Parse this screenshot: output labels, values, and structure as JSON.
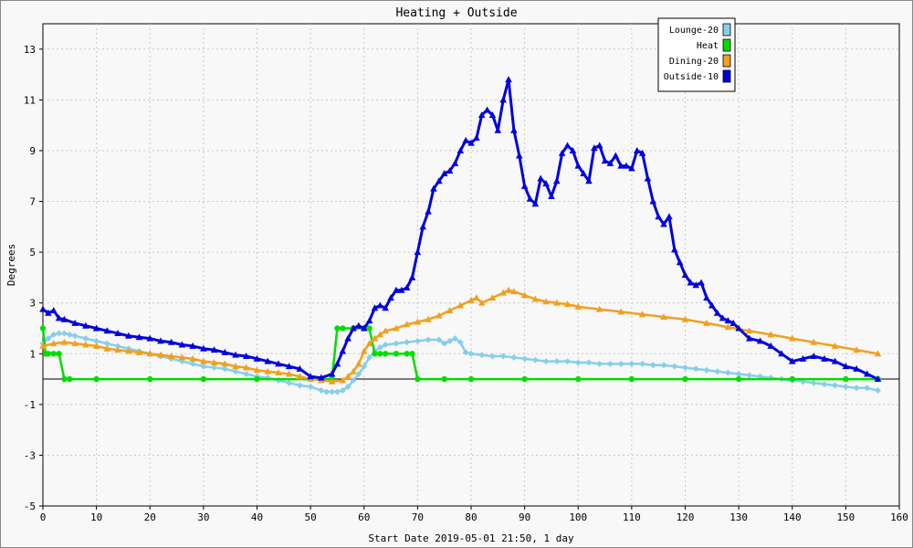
{
  "chart_data": {
    "type": "line",
    "title": "Heating + Outside",
    "xlabel": "Start Date 2019-05-01 21:50, 1 day",
    "ylabel": "Degrees",
    "xlim": [
      0,
      160
    ],
    "ylim": [
      -5,
      14
    ],
    "xticks": [
      0,
      10,
      20,
      30,
      40,
      50,
      60,
      70,
      80,
      90,
      100,
      110,
      120,
      130,
      140,
      150,
      160
    ],
    "yticks": [
      -5,
      -3,
      -1,
      1,
      3,
      5,
      7,
      9,
      11,
      13
    ],
    "grid": true,
    "legend_position": "top-right",
    "series": [
      {
        "name": "Lounge-20",
        "color": "#87ceeb",
        "marker": "diamond",
        "x": [
          0,
          1,
          2,
          3,
          4,
          5,
          6,
          8,
          10,
          12,
          14,
          16,
          18,
          20,
          22,
          24,
          26,
          28,
          30,
          32,
          34,
          36,
          38,
          40,
          42,
          44,
          46,
          48,
          50,
          52,
          53,
          54,
          55,
          56,
          57,
          58,
          59,
          60,
          61,
          62,
          63,
          64,
          66,
          68,
          70,
          72,
          74,
          75,
          76,
          77,
          78,
          79,
          80,
          82,
          84,
          86,
          88,
          90,
          92,
          94,
          96,
          98,
          100,
          102,
          104,
          106,
          108,
          110,
          112,
          114,
          116,
          118,
          120,
          122,
          124,
          126,
          128,
          130,
          132,
          134,
          136,
          138,
          140,
          142,
          144,
          146,
          148,
          150,
          152,
          154,
          156
        ],
        "values": [
          1.4,
          1.6,
          1.75,
          1.8,
          1.8,
          1.75,
          1.7,
          1.6,
          1.5,
          1.4,
          1.3,
          1.2,
          1.1,
          1.0,
          0.9,
          0.8,
          0.7,
          0.6,
          0.5,
          0.45,
          0.4,
          0.3,
          0.2,
          0.1,
          0.05,
          -0.05,
          -0.15,
          -0.25,
          -0.3,
          -0.45,
          -0.5,
          -0.5,
          -0.5,
          -0.45,
          -0.3,
          -0.05,
          0.2,
          0.5,
          0.85,
          1.1,
          1.25,
          1.35,
          1.4,
          1.45,
          1.5,
          1.55,
          1.55,
          1.4,
          1.5,
          1.6,
          1.45,
          1.05,
          1.0,
          0.95,
          0.9,
          0.9,
          0.85,
          0.8,
          0.75,
          0.7,
          0.7,
          0.7,
          0.65,
          0.65,
          0.6,
          0.6,
          0.6,
          0.6,
          0.6,
          0.55,
          0.55,
          0.5,
          0.45,
          0.4,
          0.35,
          0.3,
          0.25,
          0.2,
          0.15,
          0.1,
          0.05,
          0.0,
          -0.05,
          -0.1,
          -0.15,
          -0.2,
          -0.25,
          -0.3,
          -0.35,
          -0.35,
          -0.45
        ]
      },
      {
        "name": "Heat",
        "color": "#00dd00",
        "marker": "circle",
        "x": [
          0,
          0.5,
          1,
          2,
          3,
          4,
          5,
          10,
          20,
          30,
          40,
          50,
          54,
          55,
          56,
          58,
          60,
          61,
          62,
          63,
          64,
          66,
          68,
          69,
          70,
          75,
          80,
          90,
          100,
          110,
          120,
          130,
          140,
          150,
          156
        ],
        "values": [
          2.0,
          1.0,
          1.0,
          1.0,
          1.0,
          0.0,
          0.0,
          0.0,
          0.0,
          0.0,
          0.0,
          0.0,
          0.0,
          2.0,
          2.0,
          2.0,
          2.0,
          2.0,
          1.0,
          1.0,
          1.0,
          1.0,
          1.0,
          1.0,
          0.0,
          0.0,
          0.0,
          0.0,
          0.0,
          0.0,
          0.0,
          0.0,
          0.0,
          0.0,
          0.0
        ]
      },
      {
        "name": "Dining-20",
        "color": "#f0a020",
        "marker": "triangle",
        "x": [
          0,
          2,
          4,
          6,
          8,
          10,
          12,
          14,
          16,
          18,
          20,
          22,
          24,
          26,
          28,
          30,
          32,
          34,
          36,
          38,
          40,
          42,
          44,
          46,
          48,
          50,
          52,
          54,
          56,
          57,
          58,
          59,
          60,
          61,
          62,
          63,
          64,
          66,
          68,
          70,
          72,
          74,
          76,
          78,
          80,
          81,
          82,
          84,
          86,
          87,
          88,
          90,
          92,
          94,
          96,
          98,
          100,
          104,
          108,
          112,
          116,
          120,
          124,
          128,
          132,
          136,
          140,
          144,
          148,
          152,
          156
        ],
        "values": [
          1.3,
          1.4,
          1.45,
          1.4,
          1.35,
          1.3,
          1.2,
          1.15,
          1.1,
          1.05,
          1.0,
          0.95,
          0.9,
          0.85,
          0.8,
          0.7,
          0.65,
          0.6,
          0.5,
          0.45,
          0.35,
          0.3,
          0.25,
          0.2,
          0.1,
          0.0,
          -0.05,
          -0.1,
          -0.05,
          0.1,
          0.3,
          0.6,
          1.1,
          1.4,
          1.6,
          1.75,
          1.9,
          2.0,
          2.15,
          2.25,
          2.35,
          2.5,
          2.7,
          2.9,
          3.1,
          3.2,
          3.0,
          3.2,
          3.4,
          3.5,
          3.45,
          3.3,
          3.15,
          3.05,
          3.0,
          2.95,
          2.85,
          2.75,
          2.65,
          2.55,
          2.45,
          2.35,
          2.2,
          2.05,
          1.9,
          1.75,
          1.6,
          1.45,
          1.3,
          1.15,
          1.0
        ]
      },
      {
        "name": "Outside-10",
        "color": "#0000dd",
        "marker": "triangle",
        "x": [
          0,
          1,
          2,
          3,
          4,
          6,
          8,
          10,
          12,
          14,
          16,
          18,
          20,
          22,
          24,
          26,
          28,
          30,
          32,
          34,
          36,
          38,
          40,
          42,
          44,
          46,
          48,
          50,
          52,
          54,
          55,
          56,
          57,
          58,
          59,
          60,
          61,
          62,
          63,
          64,
          65,
          66,
          67,
          68,
          69,
          70,
          71,
          72,
          73,
          74,
          75,
          76,
          77,
          78,
          79,
          80,
          81,
          82,
          83,
          84,
          85,
          86,
          87,
          88,
          89,
          90,
          91,
          92,
          93,
          94,
          95,
          96,
          97,
          98,
          99,
          100,
          101,
          102,
          103,
          104,
          105,
          106,
          107,
          108,
          109,
          110,
          111,
          112,
          113,
          114,
          115,
          116,
          117,
          118,
          119,
          120,
          121,
          122,
          123,
          124,
          125,
          126,
          127,
          128,
          129,
          130,
          132,
          134,
          136,
          138,
          140,
          142,
          144,
          146,
          148,
          150,
          152,
          154,
          156
        ],
        "values": [
          2.75,
          2.6,
          2.7,
          2.4,
          2.35,
          2.2,
          2.1,
          2.0,
          1.9,
          1.8,
          1.7,
          1.65,
          1.6,
          1.5,
          1.45,
          1.35,
          1.3,
          1.2,
          1.15,
          1.05,
          0.95,
          0.9,
          0.8,
          0.7,
          0.6,
          0.5,
          0.4,
          0.1,
          0.05,
          0.2,
          0.6,
          1.1,
          1.6,
          2.0,
          2.1,
          2.0,
          2.3,
          2.8,
          2.9,
          2.8,
          3.2,
          3.5,
          3.5,
          3.6,
          4.0,
          5.0,
          6.0,
          6.6,
          7.5,
          7.8,
          8.1,
          8.2,
          8.5,
          9.0,
          9.4,
          9.3,
          9.5,
          10.4,
          10.6,
          10.4,
          9.8,
          11.0,
          11.8,
          9.8,
          8.8,
          7.6,
          7.1,
          6.9,
          7.9,
          7.7,
          7.2,
          7.8,
          8.9,
          9.2,
          9.0,
          8.4,
          8.1,
          7.8,
          9.1,
          9.2,
          8.6,
          8.5,
          8.8,
          8.4,
          8.4,
          8.3,
          9.0,
          8.9,
          7.9,
          7.0,
          6.4,
          6.1,
          6.4,
          5.1,
          4.6,
          4.1,
          3.8,
          3.7,
          3.8,
          3.2,
          2.9,
          2.6,
          2.4,
          2.3,
          2.2,
          2.0,
          1.6,
          1.5,
          1.3,
          1.0,
          0.7,
          0.8,
          0.9,
          0.8,
          0.7,
          0.5,
          0.4,
          0.2,
          0.0
        ]
      }
    ]
  }
}
